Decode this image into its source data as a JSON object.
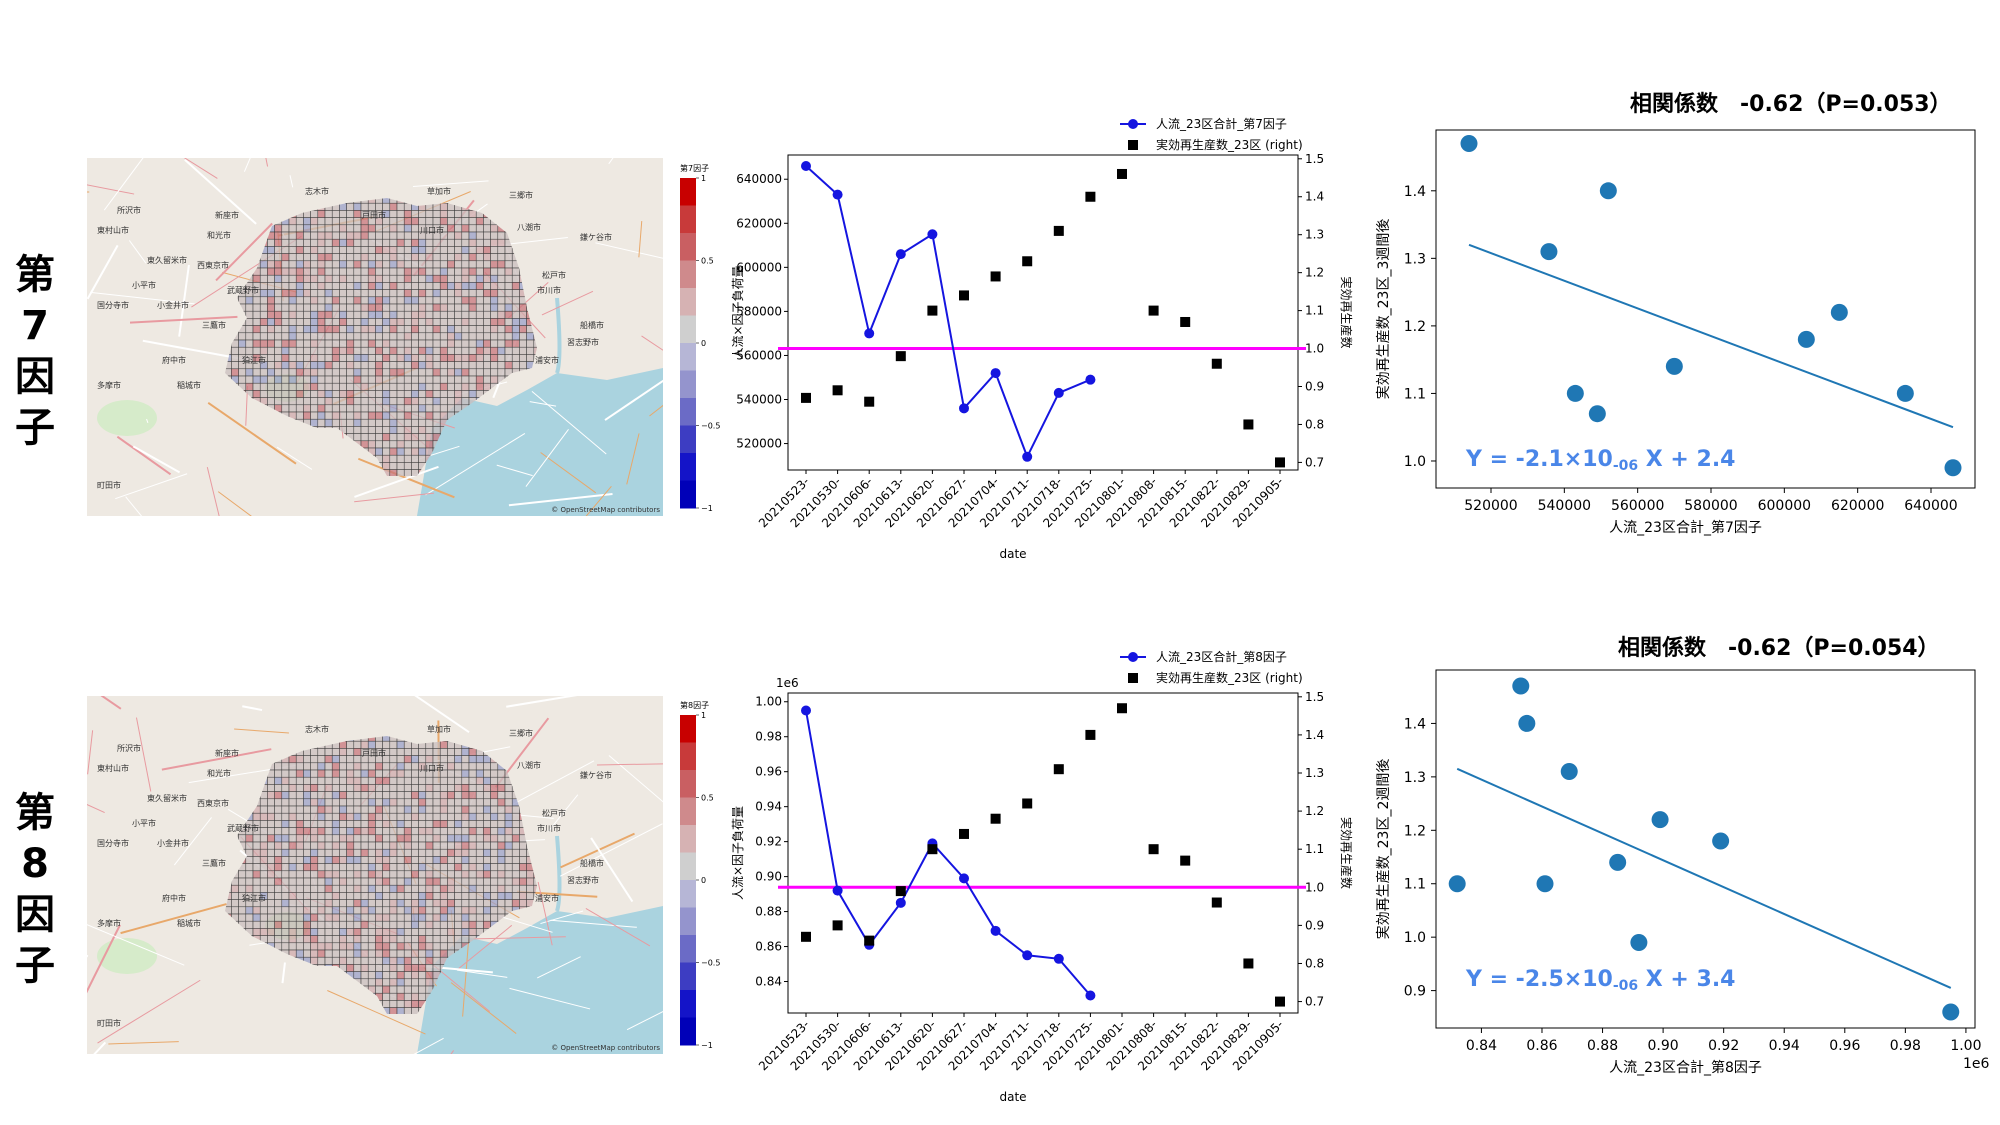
{
  "rows": [
    {
      "factor_label": "第\n7\n因\n子",
      "map": {
        "colorbar_title": "第7因子",
        "colorbar_ticks": [
          "1",
          "0.5",
          "0",
          "−0.5",
          "−1"
        ],
        "attribution": "© OpenStreetMap contributors",
        "place_labels": [
          "志木市",
          "草加市",
          "三郷市",
          "所沢市",
          "新座市",
          "戸田市",
          "川口市",
          "八潮市",
          "松戸市",
          "東村山市",
          "和光市",
          "鎌ケ谷市",
          "東久留米市",
          "西東京市",
          "市川市",
          "小平市",
          "武蔵野市",
          "国分寺市",
          "小金井市",
          "船橋市",
          "三鷹市",
          "習志野市",
          "府中市",
          "狛江市",
          "浦安市",
          "多摩市",
          "稲城市",
          "町田市"
        ]
      },
      "timeseries": {
        "chart_data": {
          "type": "line",
          "x": [
            "20210523-",
            "20210530-",
            "20210606-",
            "20210613-",
            "20210620-",
            "20210627-",
            "20210704-",
            "20210711-",
            "20210718-",
            "20210725-",
            "20210801-",
            "20210808-",
            "20210815-",
            "20210822-",
            "20210829-",
            "20210905-"
          ],
          "xlabel": "date",
          "ylabel": "人流×因子負荷量",
          "y2label": "実効再生産数",
          "y_offset_label": "",
          "ylim": [
            508000,
            651000
          ],
          "y2lim": [
            0.68,
            1.51
          ],
          "yticks": [
            520000,
            540000,
            560000,
            580000,
            600000,
            620000,
            640000
          ],
          "ytick_labels": [
            "520000",
            "540000",
            "560000",
            "580000",
            "600000",
            "620000",
            "640000"
          ],
          "y2ticks": [
            0.7,
            0.8,
            0.9,
            1.0,
            1.1,
            1.2,
            1.3,
            1.4,
            1.5
          ],
          "y2tick_labels": [
            "0.7",
            "0.8",
            "0.9",
            "1.0",
            "1.1",
            "1.2",
            "1.3",
            "1.4",
            "1.5"
          ],
          "reference_line_y2": 1.0,
          "series": [
            {
              "name": "人流_23区合計_第7因子",
              "axis": "left",
              "style": "line-marker",
              "color": "#1515e0",
              "values": [
                646000,
                633000,
                570000,
                606000,
                615000,
                536000,
                552000,
                514000,
                543000,
                549000,
                null,
                null,
                null,
                null,
                null,
                null
              ]
            },
            {
              "name": "実効再生産数_23区 (right)",
              "axis": "right",
              "style": "square",
              "color": "#000000",
              "values": [
                0.87,
                0.89,
                0.86,
                0.98,
                1.1,
                1.14,
                1.19,
                1.23,
                1.31,
                1.4,
                1.46,
                1.1,
                1.07,
                0.96,
                0.8,
                0.7
              ]
            }
          ],
          "colors": {
            "reference": "#ff00ff"
          }
        }
      },
      "scatter": {
        "title": "相関係数　-0.62（P=0.053）",
        "equation": {
          "prefix": "Y = -2.1×10",
          "exp": "-06",
          "suffix": " X + 2.4"
        },
        "chart_data": {
          "type": "scatter",
          "xlabel": "人流_23区合計_第7因子",
          "ylabel": "実効再生産数_23区_3週間後",
          "xlim": [
            505000,
            652000
          ],
          "ylim": [
            0.96,
            1.49
          ],
          "xticks": [
            520000,
            540000,
            560000,
            580000,
            600000,
            620000,
            640000
          ],
          "xtick_labels": [
            "520000",
            "540000",
            "560000",
            "580000",
            "600000",
            "620000",
            "640000"
          ],
          "yticks": [
            1.0,
            1.1,
            1.2,
            1.3,
            1.4
          ],
          "ytick_labels": [
            "1.0",
            "1.1",
            "1.2",
            "1.3",
            "1.4"
          ],
          "x_offset_label": "",
          "points": [
            [
              514000,
              1.47
            ],
            [
              535800,
              1.31
            ],
            [
              543000,
              1.1
            ],
            [
              549000,
              1.07
            ],
            [
              552000,
              1.4
            ],
            [
              570000,
              1.14
            ],
            [
              606000,
              1.18
            ],
            [
              615000,
              1.22
            ],
            [
              633000,
              1.1
            ],
            [
              646000,
              0.99
            ]
          ],
          "fit_line": [
            [
              514000,
              1.32
            ],
            [
              646000,
              1.05
            ]
          ],
          "colors": {
            "points": "#1f77b4",
            "fit": "#1f77b4",
            "equation": "#4a86e8"
          }
        }
      }
    },
    {
      "factor_label": "第\n8\n因\n子",
      "map": {
        "colorbar_title": "第8因子",
        "colorbar_ticks": [
          "1",
          "0.5",
          "0",
          "−0.5",
          "−1"
        ],
        "attribution": "© OpenStreetMap contributors",
        "place_labels": [
          "志木市",
          "草加市",
          "三郷市",
          "所沢市",
          "新座市",
          "戸田市",
          "川口市",
          "八潮市",
          "松戸市",
          "東村山市",
          "和光市",
          "鎌ケ谷市",
          "東久留米市",
          "西東京市",
          "市川市",
          "小平市",
          "武蔵野市",
          "国分寺市",
          "小金井市",
          "船橋市",
          "三鷹市",
          "習志野市",
          "府中市",
          "狛江市",
          "浦安市",
          "多摩市",
          "稲城市",
          "町田市"
        ]
      },
      "timeseries": {
        "chart_data": {
          "type": "line",
          "x": [
            "20210523-",
            "20210530-",
            "20210606-",
            "20210613-",
            "20210620-",
            "20210627-",
            "20210704-",
            "20210711-",
            "20210718-",
            "20210725-",
            "20210801-",
            "20210808-",
            "20210815-",
            "20210822-",
            "20210829-",
            "20210905-"
          ],
          "xlabel": "date",
          "ylabel": "人流×因子負荷量",
          "y2label": "実効再生産数",
          "y_offset_label": "1e6",
          "ylim": [
            0.822,
            1.005
          ],
          "y2lim": [
            0.67,
            1.51
          ],
          "yticks": [
            0.84,
            0.86,
            0.88,
            0.9,
            0.92,
            0.94,
            0.96,
            0.98,
            1.0
          ],
          "ytick_labels": [
            "0.84",
            "0.86",
            "0.88",
            "0.90",
            "0.92",
            "0.94",
            "0.96",
            "0.98",
            "1.00"
          ],
          "y2ticks": [
            0.7,
            0.8,
            0.9,
            1.0,
            1.1,
            1.2,
            1.3,
            1.4,
            1.5
          ],
          "y2tick_labels": [
            "0.7",
            "0.8",
            "0.9",
            "1.0",
            "1.1",
            "1.2",
            "1.3",
            "1.4",
            "1.5"
          ],
          "reference_line_y2": 1.0,
          "series": [
            {
              "name": "人流_23区合計_第8因子",
              "axis": "left",
              "style": "line-marker",
              "color": "#1515e0",
              "values": [
                0.995,
                0.892,
                0.861,
                0.885,
                0.919,
                0.899,
                0.869,
                0.855,
                0.853,
                0.832,
                null,
                null,
                null,
                null,
                null,
                null
              ]
            },
            {
              "name": "実効再生産数_23区 (right)",
              "axis": "right",
              "style": "square",
              "color": "#000000",
              "values": [
                0.87,
                0.9,
                0.86,
                0.99,
                1.1,
                1.14,
                1.18,
                1.22,
                1.31,
                1.4,
                1.47,
                1.1,
                1.07,
                0.96,
                0.8,
                0.7
              ]
            }
          ],
          "colors": {
            "reference": "#ff00ff"
          }
        }
      },
      "scatter": {
        "title": "相関係数　-0.62（P=0.054）",
        "equation": {
          "prefix": "Y = -2.5×10",
          "exp": "-06",
          "suffix": " X + 3.4"
        },
        "chart_data": {
          "type": "scatter",
          "xlabel": "人流_23区合計_第8因子",
          "ylabel": "実効再生産数_23区_2週間後",
          "xlim": [
            0.825,
            1.003
          ],
          "ylim": [
            0.83,
            1.5
          ],
          "xticks": [
            0.84,
            0.86,
            0.88,
            0.9,
            0.92,
            0.94,
            0.96,
            0.98,
            1.0
          ],
          "xtick_labels": [
            "0.84",
            "0.86",
            "0.88",
            "0.90",
            "0.92",
            "0.94",
            "0.96",
            "0.98",
            "1.00"
          ],
          "yticks": [
            0.9,
            1.0,
            1.1,
            1.2,
            1.3,
            1.4
          ],
          "ytick_labels": [
            "0.9",
            "1.0",
            "1.1",
            "1.2",
            "1.3",
            "1.4"
          ],
          "x_offset_label": "1e6",
          "points": [
            [
              0.832,
              1.1
            ],
            [
              0.853,
              1.47
            ],
            [
              0.855,
              1.4
            ],
            [
              0.861,
              1.1
            ],
            [
              0.869,
              1.31
            ],
            [
              0.885,
              1.14
            ],
            [
              0.892,
              0.99
            ],
            [
              0.899,
              1.22
            ],
            [
              0.919,
              1.18
            ],
            [
              0.995,
              0.86
            ]
          ],
          "fit_line": [
            [
              0.832,
              1.315
            ],
            [
              0.995,
              0.905
            ]
          ],
          "colors": {
            "points": "#1f77b4",
            "fit": "#1f77b4",
            "equation": "#4a86e8"
          }
        }
      }
    }
  ]
}
